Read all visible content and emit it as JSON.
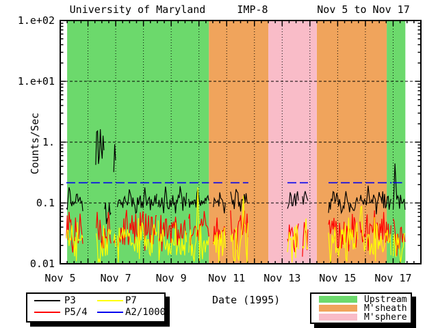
{
  "title": {
    "left": "University of Maryland",
    "center": "IMP-8",
    "right": "Nov 5 to Nov 17"
  },
  "colors": {
    "upstream_green": "#6cd96c",
    "msheath_orange": "#f0a45c",
    "msphere_pink": "#f9bcc8",
    "p3_black": "#000000",
    "p54_red": "#ff0000",
    "p7_yellow": "#ffff00",
    "a2_blue": "#0000ee"
  },
  "legend_series": {
    "items": [
      {
        "label": "P3",
        "color": "#000000"
      },
      {
        "label": "P5/4",
        "color": "#ff0000"
      },
      {
        "label": "P7",
        "color": "#ffff00"
      },
      {
        "label": "A2/1000",
        "color": "#0000ee"
      }
    ]
  },
  "legend_regions": {
    "items": [
      {
        "label": "Upstream",
        "color": "#6cd96c"
      },
      {
        "label": "M'sheath",
        "color": "#f0a45c"
      },
      {
        "label": "M'sphere",
        "color": "#f9bcc8"
      }
    ]
  },
  "chart_data": {
    "type": "line",
    "title": "University of Maryland  IMP-8  Nov 5 to Nov 17",
    "xlabel": "Date (1995)",
    "ylabel": "Counts/Sec",
    "grid": {
      "vertical": "dotted per day",
      "horizontal": "dashed per decade"
    },
    "legend_position": "below",
    "step": 0.033,
    "axes": {
      "xrange": [
        5,
        18
      ],
      "yrange": [
        0.01,
        100
      ],
      "yscale": "log",
      "xticks": [
        {
          "label": "Nov 5",
          "day": 5
        },
        {
          "label": "Nov 7",
          "day": 7
        },
        {
          "label": "Nov 9",
          "day": 9
        },
        {
          "label": "Nov 11",
          "day": 11
        },
        {
          "label": "Nov 13",
          "day": 13
        },
        {
          "label": "Nov 15",
          "day": 15
        },
        {
          "label": "Nov 17",
          "day": 17
        }
      ],
      "yticks": [
        {
          "label": "1.e+02",
          "value": 100
        },
        {
          "label": "1.e+01",
          "value": 10
        },
        {
          "label": "1.",
          "value": 1
        },
        {
          "label": "0.1",
          "value": 0.1
        },
        {
          "label": "0.01",
          "value": 0.01
        }
      ]
    },
    "regions": [
      {
        "name": "Upstream",
        "color": "#6cd96c",
        "t0": 5.25,
        "t1": 10.36
      },
      {
        "name": "M'sheath",
        "color": "#f0a45c",
        "t0": 10.36,
        "t1": 12.5
      },
      {
        "name": "M'sphere",
        "color": "#f9bcc8",
        "t0": 12.5,
        "t1": 14.25
      },
      {
        "name": "M'sheath",
        "color": "#f0a45c",
        "t0": 14.25,
        "t1": 16.77
      },
      {
        "name": "Upstream",
        "color": "#6cd96c",
        "t0": 16.77,
        "t1": 17.44
      }
    ],
    "series": [
      {
        "name": "P3",
        "color": "#000000",
        "width": 1.2,
        "seed": 11,
        "segments": [
          {
            "t0": 5.22,
            "t1": 5.84,
            "base": 0.1,
            "amp": 0.09,
            "spikes": [
              [
                5.33,
                0.21
              ],
              [
                5.6,
                0.16
              ]
            ]
          },
          {
            "t0": 6.28,
            "t1": 6.6,
            "base": 0.35,
            "amp": 0.2,
            "spikes": [
              [
                6.33,
                2.8
              ],
              [
                6.45,
                1.9
              ],
              [
                6.55,
                1.5
              ]
            ]
          },
          {
            "t0": 6.6,
            "t1": 6.86,
            "base": 0.08,
            "amp": 0.18
          },
          {
            "t0": 6.93,
            "t1": 7.02,
            "base": 0.2,
            "amp": 0.15,
            "spikes": [
              [
                6.97,
                1.15
              ]
            ]
          },
          {
            "t0": 7.06,
            "t1": 8.48,
            "base": 0.1,
            "amp": 0.09,
            "spikes": [
              [
                7.5,
                0.19
              ],
              [
                8.05,
                0.18
              ]
            ]
          },
          {
            "t0": 8.53,
            "t1": 9.58,
            "base": 0.1,
            "amp": 0.09,
            "spikes": [
              [
                8.8,
                0.2
              ],
              [
                9.33,
                0.21
              ]
            ]
          },
          {
            "t0": 9.63,
            "t1": 10.36,
            "base": 0.1,
            "amp": 0.09,
            "spikes": [
              [
                9.95,
                0.19
              ]
            ]
          },
          {
            "t0": 10.52,
            "t1": 10.97,
            "base": 0.1,
            "amp": 0.1
          },
          {
            "t0": 11.14,
            "t1": 11.78,
            "base": 0.11,
            "amp": 0.1,
            "spikes": [
              [
                11.35,
                0.19
              ]
            ]
          },
          {
            "t0": 13.19,
            "t1": 13.61,
            "base": 0.09,
            "amp": 0.12,
            "spikes": [
              [
                13.3,
                0.17
              ],
              [
                13.55,
                0.16
              ]
            ]
          },
          {
            "t0": 13.73,
            "t1": 13.93,
            "base": 0.1,
            "amp": 0.11,
            "spikes": [
              [
                13.82,
                0.17
              ]
            ]
          },
          {
            "t0": 14.67,
            "t1": 15.75,
            "base": 0.1,
            "amp": 0.1,
            "spikes": [
              [
                14.85,
                0.18
              ],
              [
                15.3,
                0.16
              ]
            ]
          },
          {
            "t0": 15.8,
            "t1": 16.95,
            "base": 0.1,
            "amp": 0.1,
            "spikes": [
              [
                16.1,
                0.2
              ],
              [
                16.5,
                0.16
              ]
            ]
          },
          {
            "t0": 17.0,
            "t1": 17.44,
            "base": 0.1,
            "amp": 0.1,
            "spikes": [
              [
                17.07,
                0.5
              ]
            ]
          }
        ]
      },
      {
        "name": "P5/4",
        "color": "#ff0000",
        "width": 1.2,
        "seed": 57,
        "segments": [
          {
            "t0": 5.22,
            "t1": 5.84,
            "base": 0.035,
            "amp": 0.2
          },
          {
            "t0": 6.3,
            "t1": 6.86,
            "base": 0.035,
            "amp": 0.2
          },
          {
            "t0": 6.93,
            "t1": 7.02,
            "base": 0.03,
            "amp": 0.18
          },
          {
            "t0": 7.06,
            "t1": 8.48,
            "base": 0.035,
            "amp": 0.2
          },
          {
            "t0": 8.53,
            "t1": 9.58,
            "base": 0.035,
            "amp": 0.2
          },
          {
            "t0": 9.63,
            "t1": 10.36,
            "base": 0.035,
            "amp": 0.2
          },
          {
            "t0": 10.52,
            "t1": 10.97,
            "base": 0.032,
            "amp": 0.18
          },
          {
            "t0": 11.14,
            "t1": 11.78,
            "base": 0.035,
            "amp": 0.2
          },
          {
            "t0": 13.19,
            "t1": 13.61,
            "base": 0.03,
            "amp": 0.2
          },
          {
            "t0": 13.73,
            "t1": 13.93,
            "base": 0.03,
            "amp": 0.2
          },
          {
            "t0": 14.67,
            "t1": 15.75,
            "base": 0.035,
            "amp": 0.2
          },
          {
            "t0": 15.8,
            "t1": 16.95,
            "base": 0.035,
            "amp": 0.2
          },
          {
            "t0": 17.0,
            "t1": 17.44,
            "base": 0.03,
            "amp": 0.2
          }
        ]
      },
      {
        "name": "P7",
        "color": "#ffff00",
        "width": 1.2,
        "seed": 83,
        "segments": [
          {
            "t0": 5.22,
            "t1": 5.84,
            "base": 0.024,
            "amp": 0.22
          },
          {
            "t0": 6.3,
            "t1": 6.86,
            "base": 0.024,
            "amp": 0.22
          },
          {
            "t0": 6.93,
            "t1": 7.02,
            "base": 0.022,
            "amp": 0.2
          },
          {
            "t0": 7.06,
            "t1": 8.48,
            "base": 0.024,
            "amp": 0.22
          },
          {
            "t0": 8.53,
            "t1": 9.58,
            "base": 0.024,
            "amp": 0.22
          },
          {
            "t0": 9.63,
            "t1": 10.36,
            "base": 0.024,
            "amp": 0.22,
            "spikes": [
              [
                9.96,
                0.18
              ]
            ]
          },
          {
            "t0": 10.52,
            "t1": 10.97,
            "base": 0.022,
            "amp": 0.2
          },
          {
            "t0": 11.14,
            "t1": 11.78,
            "base": 0.024,
            "amp": 0.22,
            "spikes": [
              [
                11.6,
                0.14
              ]
            ]
          },
          {
            "t0": 13.19,
            "t1": 13.61,
            "base": 0.022,
            "amp": 0.22
          },
          {
            "t0": 13.73,
            "t1": 13.93,
            "base": 0.022,
            "amp": 0.22
          },
          {
            "t0": 14.67,
            "t1": 15.75,
            "base": 0.024,
            "amp": 0.22
          },
          {
            "t0": 15.8,
            "t1": 16.95,
            "base": 0.024,
            "amp": 0.22,
            "spikes": [
              [
                15.85,
                0.15
              ]
            ]
          },
          {
            "t0": 17.0,
            "t1": 17.44,
            "base": 0.022,
            "amp": 0.22
          }
        ]
      },
      {
        "name": "A2/1000",
        "color": "#0000ee",
        "width": 1.6,
        "constant": 0.215,
        "dash": "13 5",
        "segments": [
          {
            "t0": 5.22,
            "t1": 10.36
          },
          {
            "t0": 10.52,
            "t1": 10.97
          },
          {
            "t0": 11.14,
            "t1": 11.78
          },
          {
            "t0": 13.19,
            "t1": 13.93
          },
          {
            "t0": 14.67,
            "t1": 16.95
          },
          {
            "t0": 17.0,
            "t1": 17.44
          }
        ]
      }
    ]
  }
}
